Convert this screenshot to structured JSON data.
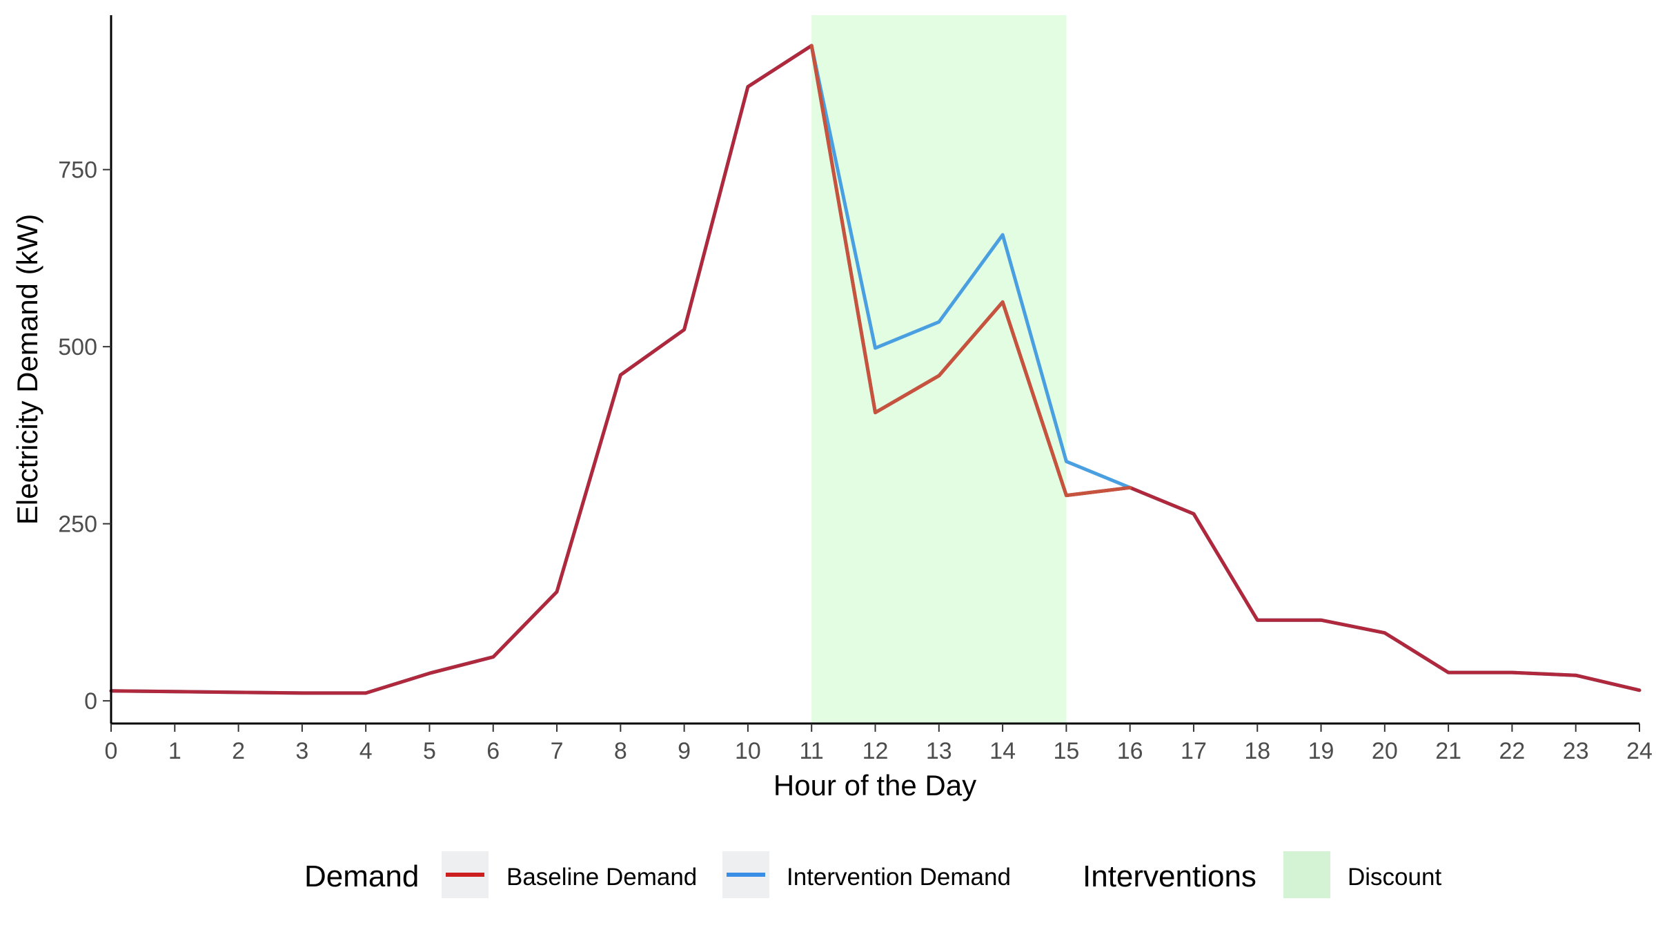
{
  "chart_data": {
    "type": "line",
    "title": "",
    "xlabel": "Hour of the Day",
    "ylabel": "Electricity Demand (kW)",
    "x": [
      0,
      1,
      2,
      3,
      4,
      5,
      6,
      7,
      8,
      9,
      10,
      11,
      12,
      13,
      14,
      15,
      16,
      17,
      18,
      19,
      20,
      21,
      22,
      23,
      24
    ],
    "x_ticks": [
      "0",
      "1",
      "2",
      "3",
      "4",
      "5",
      "6",
      "7",
      "8",
      "9",
      "10",
      "11",
      "12",
      "13",
      "14",
      "15",
      "16",
      "17",
      "18",
      "19",
      "20",
      "21",
      "22",
      "23",
      "24"
    ],
    "xlim": [
      0,
      24
    ],
    "y_ticks": [
      0,
      250,
      500,
      750
    ],
    "ylim": [
      -32,
      968
    ],
    "grid": false,
    "legend_position": "bottom",
    "series": [
      {
        "name": "Intervention Demand",
        "color": "#4a9fe0",
        "values": [
          14,
          13,
          12,
          11,
          11,
          39,
          62,
          154,
          460,
          524,
          867,
          925,
          498,
          535,
          658,
          338,
          301,
          264,
          114,
          114,
          96,
          40,
          40,
          36,
          15
        ]
      },
      {
        "name": "Baseline Demand",
        "color": "#b0283c",
        "highlight_color": "#c5533d",
        "values": [
          14,
          13,
          12,
          11,
          11,
          39,
          62,
          154,
          460,
          524,
          867,
          925,
          407,
          459,
          563,
          290,
          301,
          264,
          114,
          114,
          96,
          40,
          40,
          36,
          15
        ]
      }
    ],
    "shaded_regions": [
      {
        "name": "Discount",
        "x_start": 11,
        "x_end": 15,
        "color": "#e3fde3"
      }
    ],
    "legend": {
      "demand_title": "Demand",
      "demand_items": [
        {
          "label": "Baseline Demand",
          "color": "#cc1f1f"
        },
        {
          "label": "Intervention Demand",
          "color": "#3a8ee5"
        }
      ],
      "interventions_title": "Interventions",
      "interventions_items": [
        {
          "label": "Discount",
          "color": "#d4f2d4"
        }
      ],
      "key_background": "#eeeff1"
    }
  }
}
